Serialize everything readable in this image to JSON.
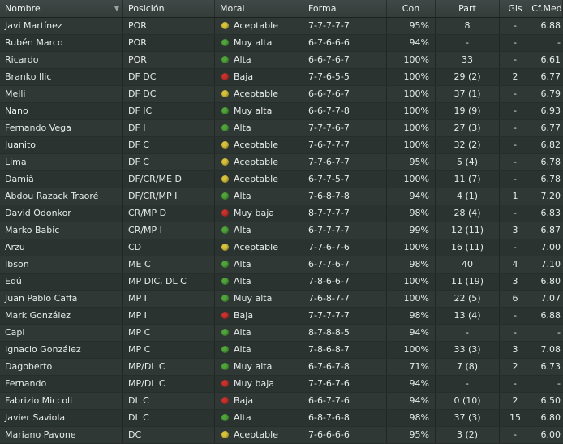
{
  "columns": {
    "name": "Nombre",
    "pos": "Posición",
    "moral": "Moral",
    "forma": "Forma",
    "con": "Con",
    "part": "Part",
    "gls": "Gls",
    "cf": "Cf.Med"
  },
  "colors": {
    "yellow": "#d8c23a",
    "green": "#4fa43a",
    "red": "#c8322c"
  },
  "rows": [
    {
      "name": "Javi Martínez",
      "pos": "POR",
      "moral_dot": "yellow",
      "moral": "Aceptable",
      "forma": "7-7-7-7-7",
      "con": "95%",
      "part": "8",
      "gls": "-",
      "cf": "6.88"
    },
    {
      "name": "Rubén Marco",
      "pos": "POR",
      "moral_dot": "green",
      "moral": "Muy alta",
      "forma": "6-7-6-6-6",
      "con": "94%",
      "part": "-",
      "gls": "-",
      "cf": "-"
    },
    {
      "name": "Ricardo",
      "pos": "POR",
      "moral_dot": "green",
      "moral": "Alta",
      "forma": "6-6-7-6-7",
      "con": "100%",
      "part": "33",
      "gls": "-",
      "cf": "6.61"
    },
    {
      "name": "Branko Ilic",
      "pos": "DF DC",
      "moral_dot": "red",
      "moral": "Baja",
      "forma": "7-7-6-5-5",
      "con": "100%",
      "part": "29 (2)",
      "gls": "2",
      "cf": "6.77"
    },
    {
      "name": "Melli",
      "pos": "DF DC",
      "moral_dot": "yellow",
      "moral": "Aceptable",
      "forma": "6-6-7-6-7",
      "con": "100%",
      "part": "37 (1)",
      "gls": "-",
      "cf": "6.79"
    },
    {
      "name": "Nano",
      "pos": "DF IC",
      "moral_dot": "green",
      "moral": "Muy alta",
      "forma": "6-6-7-7-8",
      "con": "100%",
      "part": "19 (9)",
      "gls": "-",
      "cf": "6.93"
    },
    {
      "name": "Fernando Vega",
      "pos": "DF I",
      "moral_dot": "green",
      "moral": "Alta",
      "forma": "7-7-7-6-7",
      "con": "100%",
      "part": "27 (3)",
      "gls": "-",
      "cf": "6.77"
    },
    {
      "name": "Juanito",
      "pos": "DF C",
      "moral_dot": "yellow",
      "moral": "Aceptable",
      "forma": "7-6-7-7-7",
      "con": "100%",
      "part": "32 (2)",
      "gls": "-",
      "cf": "6.82"
    },
    {
      "name": "Lima",
      "pos": "DF C",
      "moral_dot": "yellow",
      "moral": "Aceptable",
      "forma": "7-7-6-7-7",
      "con": "95%",
      "part": "5 (4)",
      "gls": "-",
      "cf": "6.78"
    },
    {
      "name": "Damià",
      "pos": "DF/CR/ME D",
      "moral_dot": "yellow",
      "moral": "Aceptable",
      "forma": "6-7-7-5-7",
      "con": "100%",
      "part": "11 (7)",
      "gls": "-",
      "cf": "6.78"
    },
    {
      "name": "Abdou Razack Traoré",
      "pos": "DF/CR/MP I",
      "moral_dot": "green",
      "moral": "Alta",
      "forma": "7-6-8-7-8",
      "con": "94%",
      "part": "4 (1)",
      "gls": "1",
      "cf": "7.20"
    },
    {
      "name": "David Odonkor",
      "pos": "CR/MP D",
      "moral_dot": "red",
      "moral": "Muy baja",
      "forma": "8-7-7-7-7",
      "con": "98%",
      "part": "28 (4)",
      "gls": "-",
      "cf": "6.83"
    },
    {
      "name": "Marko Babic",
      "pos": "CR/MP I",
      "moral_dot": "green",
      "moral": "Alta",
      "forma": "6-7-7-7-7",
      "con": "99%",
      "part": "12 (11)",
      "gls": "3",
      "cf": "6.87"
    },
    {
      "name": "Arzu",
      "pos": "CD",
      "moral_dot": "yellow",
      "moral": "Aceptable",
      "forma": "7-7-6-7-6",
      "con": "100%",
      "part": "16 (11)",
      "gls": "-",
      "cf": "7.00"
    },
    {
      "name": "Ibson",
      "pos": "ME C",
      "moral_dot": "green",
      "moral": "Alta",
      "forma": "6-7-7-6-7",
      "con": "98%",
      "part": "40",
      "gls": "4",
      "cf": "7.10"
    },
    {
      "name": "Edú",
      "pos": "MP DIC, DL C",
      "moral_dot": "green",
      "moral": "Alta",
      "forma": "7-8-6-6-7",
      "con": "100%",
      "part": "11 (19)",
      "gls": "3",
      "cf": "6.80"
    },
    {
      "name": "Juan Pablo Caffa",
      "pos": "MP I",
      "moral_dot": "green",
      "moral": "Muy alta",
      "forma": "7-6-8-7-7",
      "con": "100%",
      "part": "22 (5)",
      "gls": "6",
      "cf": "7.07"
    },
    {
      "name": "Mark González",
      "pos": "MP I",
      "moral_dot": "red",
      "moral": "Baja",
      "forma": "7-7-7-7-7",
      "con": "98%",
      "part": "13 (4)",
      "gls": "-",
      "cf": "6.88"
    },
    {
      "name": "Capi",
      "pos": "MP C",
      "moral_dot": "green",
      "moral": "Alta",
      "forma": "8-7-8-8-5",
      "con": "94%",
      "part": "-",
      "gls": "-",
      "cf": "-"
    },
    {
      "name": "Ignacio González",
      "pos": "MP C",
      "moral_dot": "green",
      "moral": "Alta",
      "forma": "7-8-6-8-7",
      "con": "100%",
      "part": "33 (3)",
      "gls": "3",
      "cf": "7.08"
    },
    {
      "name": "Dagoberto",
      "pos": "MP/DL C",
      "moral_dot": "green",
      "moral": "Muy alta",
      "forma": "6-7-6-7-8",
      "con": "71%",
      "part": "7 (8)",
      "gls": "2",
      "cf": "6.73"
    },
    {
      "name": "Fernando",
      "pos": "MP/DL C",
      "moral_dot": "red",
      "moral": "Muy baja",
      "forma": "7-7-6-7-6",
      "con": "94%",
      "part": "-",
      "gls": "-",
      "cf": "-"
    },
    {
      "name": "Fabrizio Miccoli",
      "pos": "DL C",
      "moral_dot": "red",
      "moral": "Baja",
      "forma": "6-6-7-7-6",
      "con": "94%",
      "part": "0 (10)",
      "gls": "2",
      "cf": "6.50"
    },
    {
      "name": "Javier Saviola",
      "pos": "DL C",
      "moral_dot": "green",
      "moral": "Alta",
      "forma": "6-8-7-6-8",
      "con": "98%",
      "part": "37 (3)",
      "gls": "15",
      "cf": "6.80"
    },
    {
      "name": "Mariano Pavone",
      "pos": "DC",
      "moral_dot": "yellow",
      "moral": "Aceptable",
      "forma": "7-6-6-6-6",
      "con": "95%",
      "part": "3 (2)",
      "gls": "-",
      "cf": "6.00"
    }
  ]
}
